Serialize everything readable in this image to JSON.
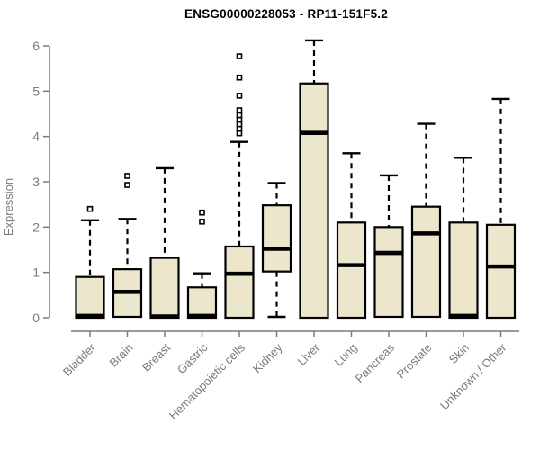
{
  "title": "ENSG00000228053 - RP11-151F5.2",
  "colors": {
    "box_fill": "#ECE6CC",
    "box_stroke": "#000000",
    "median": "#000000",
    "whisker": "#000000",
    "axis": "#7A7A7A",
    "tick_label": "#7A7A7A",
    "title": "#000000"
  },
  "chart_data": {
    "type": "boxplot",
    "title": "ENSG00000228053 - RP11-151F5.2",
    "xlabel": "",
    "ylabel": "Expression",
    "ylim": [
      0,
      6.2
    ],
    "yticks": [
      0,
      1,
      2,
      3,
      4,
      5,
      6
    ],
    "grid": false,
    "legend": "none",
    "categories": [
      "Bladder",
      "Brain",
      "Breast",
      "Gastric",
      "Hematopoietic cells",
      "Kidney",
      "Liver",
      "Lung",
      "Pancreas",
      "Prostate",
      "Skin",
      "Unknown / Other"
    ],
    "boxes": [
      {
        "category": "Bladder",
        "q1": 0,
        "median": 0.04,
        "q3": 0.9,
        "whisker_low": 0,
        "whisker_high": 2.15,
        "outliers": [
          2.4
        ]
      },
      {
        "category": "Brain",
        "q1": 0.02,
        "median": 0.57,
        "q3": 1.07,
        "whisker_low": 0.02,
        "whisker_high": 2.18,
        "outliers": [
          2.93,
          3.13
        ]
      },
      {
        "category": "Breast",
        "q1": 0,
        "median": 0.03,
        "q3": 1.32,
        "whisker_low": 0,
        "whisker_high": 3.3,
        "outliers": []
      },
      {
        "category": "Gastric",
        "q1": 0,
        "median": 0.04,
        "q3": 0.67,
        "whisker_low": 0,
        "whisker_high": 0.98,
        "outliers": [
          2.12,
          2.32
        ]
      },
      {
        "category": "Hematopoietic cells",
        "q1": 0,
        "median": 0.97,
        "q3": 1.57,
        "whisker_low": 0,
        "whisker_high": 3.88,
        "outliers": [
          4.07,
          4.17,
          4.27,
          4.37,
          4.47,
          4.58,
          4.9,
          5.3,
          5.77
        ]
      },
      {
        "category": "Kidney",
        "q1": 1.02,
        "median": 1.52,
        "q3": 2.48,
        "whisker_low": 0.02,
        "whisker_high": 2.97,
        "outliers": []
      },
      {
        "category": "Liver",
        "q1": 0,
        "median": 4.08,
        "q3": 5.17,
        "whisker_low": 0,
        "whisker_high": 6.12,
        "outliers": []
      },
      {
        "category": "Lung",
        "q1": 0,
        "median": 1.16,
        "q3": 2.1,
        "whisker_low": 0,
        "whisker_high": 3.63,
        "outliers": []
      },
      {
        "category": "Pancreas",
        "q1": 0.02,
        "median": 1.43,
        "q3": 2.0,
        "whisker_low": 0.02,
        "whisker_high": 3.14,
        "outliers": []
      },
      {
        "category": "Prostate",
        "q1": 0.02,
        "median": 1.86,
        "q3": 2.45,
        "whisker_low": 0.02,
        "whisker_high": 4.28,
        "outliers": []
      },
      {
        "category": "Skin",
        "q1": 0,
        "median": 0.04,
        "q3": 2.1,
        "whisker_low": 0,
        "whisker_high": 3.53,
        "outliers": []
      },
      {
        "category": "Unknown / Other",
        "q1": 0,
        "median": 1.13,
        "q3": 2.05,
        "whisker_low": 0,
        "whisker_high": 4.83,
        "outliers": []
      }
    ]
  }
}
